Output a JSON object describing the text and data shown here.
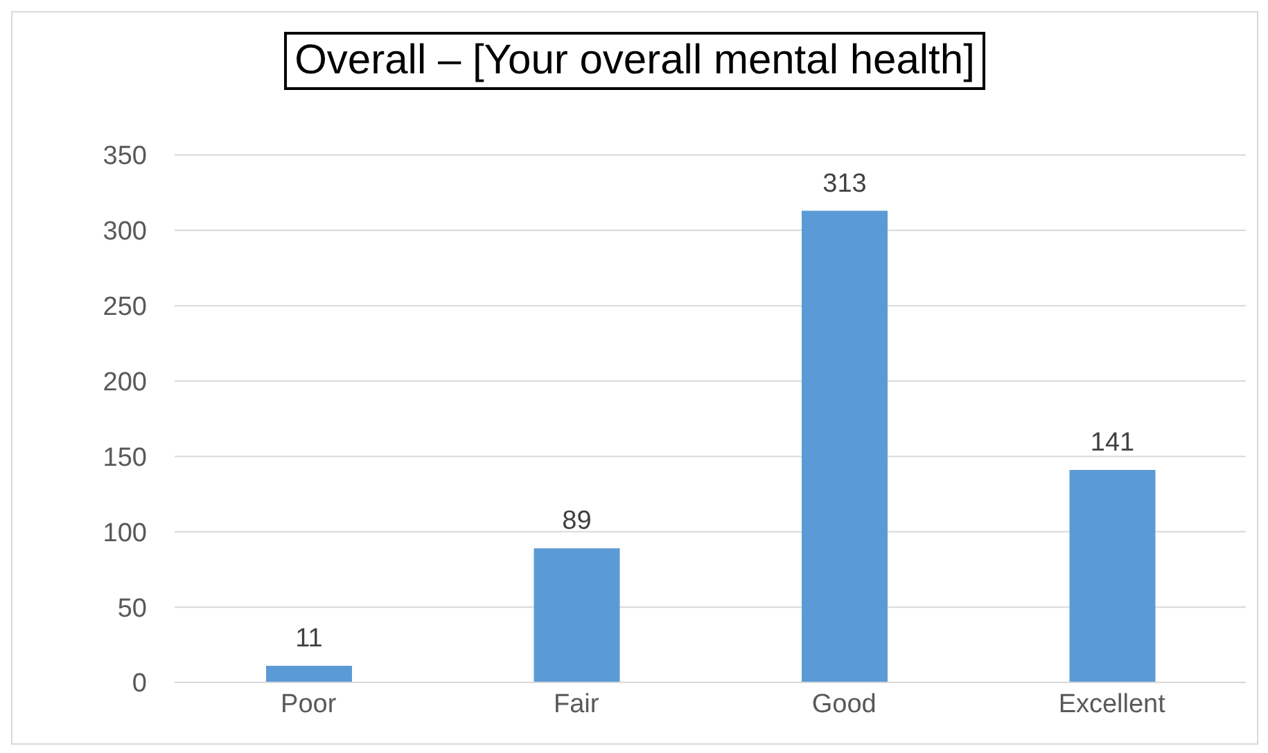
{
  "chart_data": {
    "type": "bar",
    "title": "Overall – [Your overall mental health]",
    "categories": [
      "Poor",
      "Fair",
      "Good",
      "Excellent"
    ],
    "values": [
      11,
      89,
      313,
      141
    ],
    "color": "#5b9bd5",
    "ylim": [
      0,
      350
    ],
    "yticks": [
      0,
      50,
      100,
      150,
      200,
      250,
      300,
      350
    ],
    "grid": "y",
    "data_labels": true
  }
}
